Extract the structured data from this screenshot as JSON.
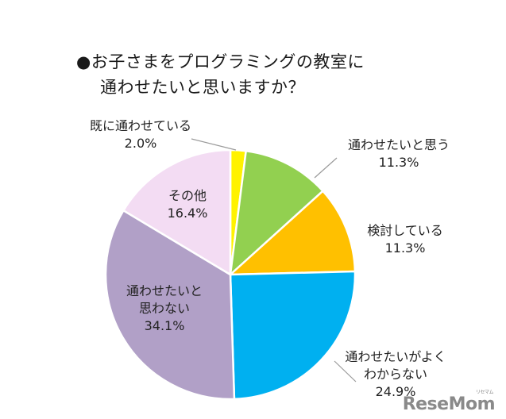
{
  "title": {
    "line1": "●お子さまをプログラミングの教室に",
    "line2": "通わせたいと思いますか？"
  },
  "chart_data": {
    "type": "pie",
    "title": "●お子さまをプログラミングの教室に通わせたいと思いますか？",
    "start": "top, clockwise",
    "slices": [
      {
        "label": "既に通わせている",
        "value": 2.0,
        "display": "2.0%",
        "color": "#FFF200"
      },
      {
        "label": "通わせたいと思う",
        "value": 11.3,
        "display": "11.3%",
        "color": "#92D050"
      },
      {
        "label": "検討している",
        "value": 11.3,
        "display": "11.3%",
        "color": "#FFC000"
      },
      {
        "label": "通わせたいがよくわからない",
        "value": 24.9,
        "display": "24.9%",
        "color": "#00B0F0"
      },
      {
        "label": "通わせたいと思わない",
        "value": 34.1,
        "display": "34.1%",
        "color": "#B1A0C7"
      },
      {
        "label": "その他",
        "value": 16.4,
        "display": "16.4%",
        "color": "#F3DCF3"
      }
    ]
  },
  "labels": {
    "s0": {
      "lines": [
        "既に通わせている",
        "2.0%"
      ]
    },
    "s1": {
      "lines": [
        "通わせたいと思う",
        "11.3%"
      ]
    },
    "s2": {
      "lines": [
        "検討している",
        "11.3%"
      ]
    },
    "s3": {
      "lines": [
        "通わせたいがよく",
        "わからない",
        "24.9%"
      ]
    },
    "s4": {
      "lines": [
        "通わせたいと",
        "思わない",
        "34.1%"
      ]
    },
    "s5": {
      "lines": [
        "その他",
        "16.4%"
      ]
    }
  },
  "logo": {
    "text": "ReseMom",
    "small": "リセマム"
  }
}
